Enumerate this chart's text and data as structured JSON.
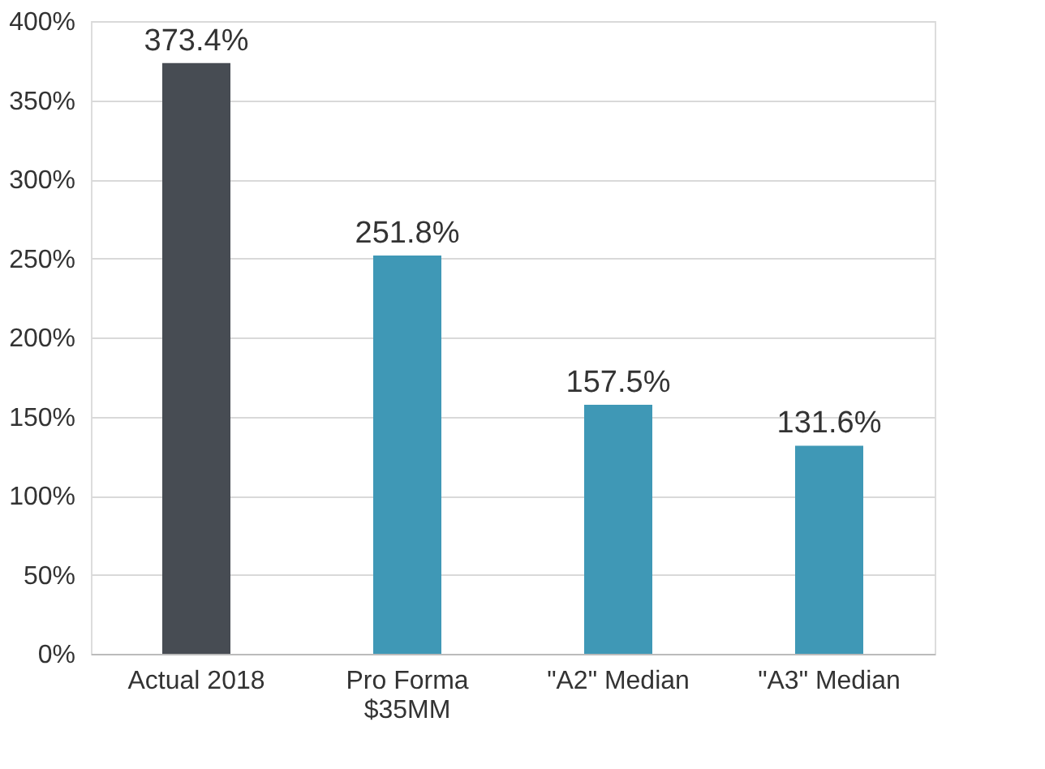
{
  "chart_data": {
    "type": "bar",
    "categories": [
      "Actual 2018",
      "Pro Forma\n$35MM",
      "\"A2\" Median",
      "\"A3\" Median"
    ],
    "values": [
      373.4,
      251.8,
      157.5,
      131.6
    ],
    "colors": [
      "#474c53",
      "#3f98b6",
      "#3f98b6",
      "#3f98b6"
    ],
    "value_labels": [
      "373.4%",
      "251.8%",
      "157.5%",
      "131.6%"
    ],
    "ylim": [
      0,
      400
    ],
    "yticks": [
      {
        "value": 0,
        "label": "0%"
      },
      {
        "value": 50,
        "label": "50%"
      },
      {
        "value": 100,
        "label": "100%"
      },
      {
        "value": 150,
        "label": "150%"
      },
      {
        "value": 200,
        "label": "200%"
      },
      {
        "value": 250,
        "label": "250%"
      },
      {
        "value": 300,
        "label": "300%"
      },
      {
        "value": 350,
        "label": "350%"
      },
      {
        "value": 400,
        "label": "400%"
      }
    ],
    "grid": "y"
  }
}
